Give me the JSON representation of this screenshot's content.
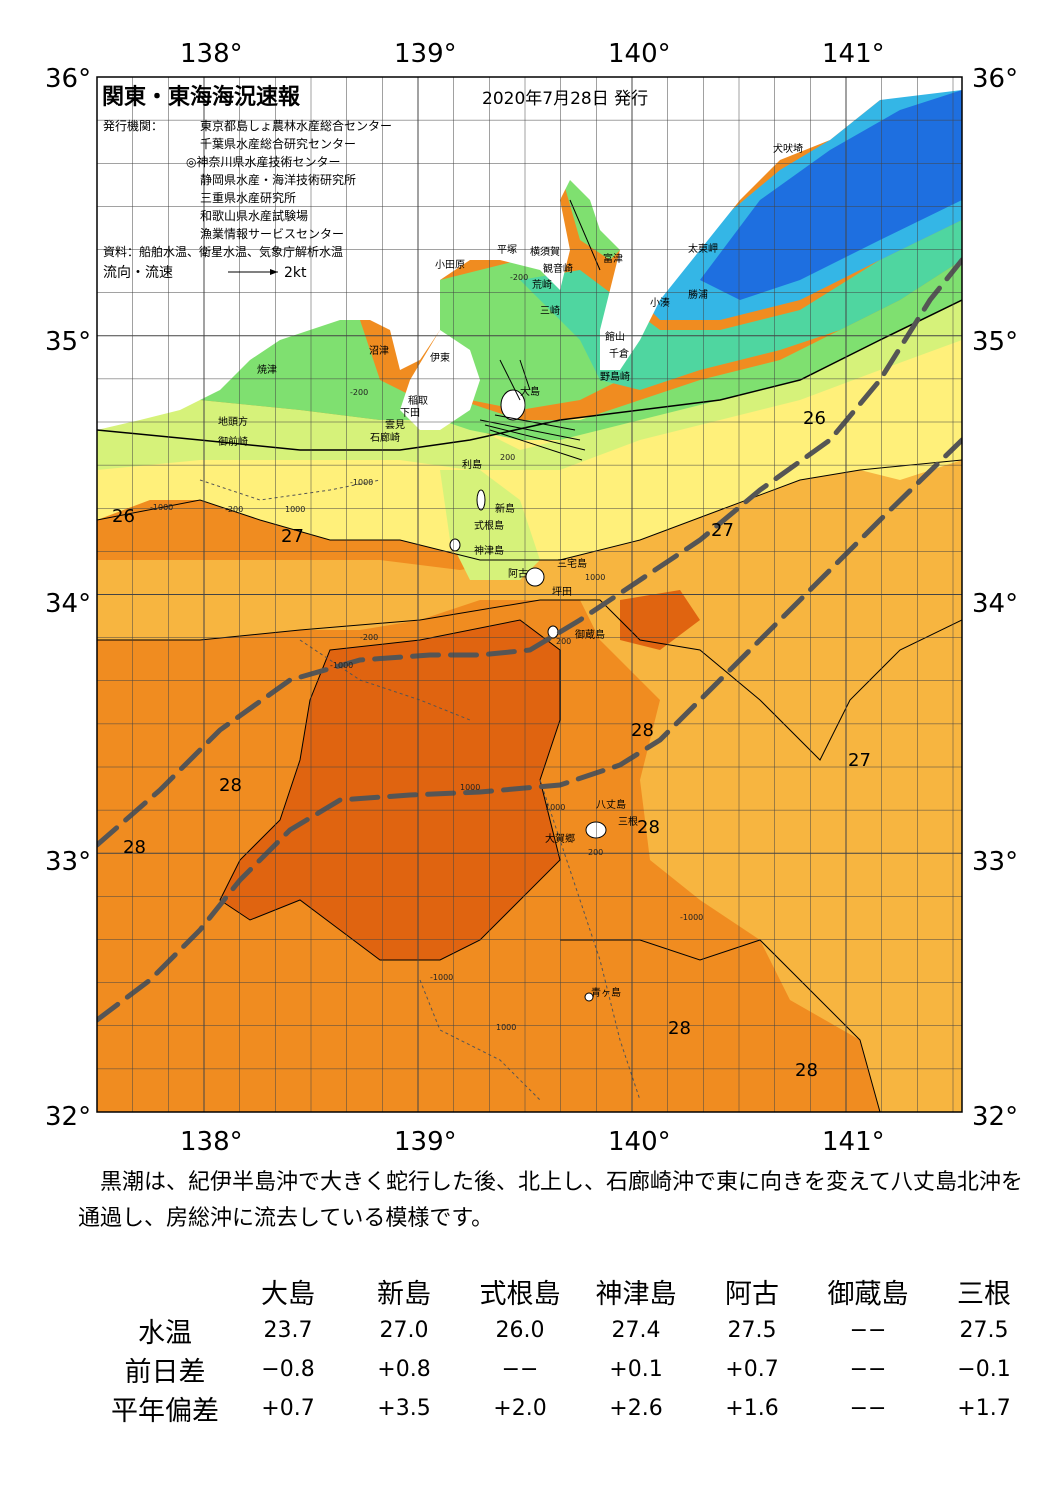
{
  "map": {
    "title": "関東・東海海況速報",
    "date": "2020年7月28日 発行",
    "issuer_label": "発行機関：",
    "issuers": [
      "東京都島しょ農林水産総合センター",
      "千葉県水産総合研究センター",
      "◎神奈川県水産技術センター",
      "静岡県水産・海洋技術研究所",
      "三重県水産研究所",
      "和歌山県水産試験場",
      "漁業情報サービスセンター"
    ],
    "source": "資料：船舶水温、衛星水温、気象庁解析水温",
    "flow_label": "流向・流速",
    "flow_scale": "2kt",
    "lon_labels": [
      "138°",
      "139°",
      "140°",
      "141°"
    ],
    "lat_labels": [
      "36°",
      "35°",
      "34°",
      "33°",
      "32°"
    ],
    "colors": {
      "land": "#ffffff",
      "kuroshio_path": "#555555",
      "sst_19": "#1e6fe0",
      "sst_22": "#34b6e6",
      "sst_23": "#4fd6a0",
      "sst_24": "#7fe070",
      "sst_25": "#d6f27a",
      "sst_26": "#fff07a",
      "sst_27": "#f7b540",
      "sst_28": "#f08c20",
      "sst_29": "#e06410"
    },
    "places": [
      {
        "name": "犬吠埼"
      },
      {
        "name": "太東岬"
      },
      {
        "name": "勝浦"
      },
      {
        "name": "小湊"
      },
      {
        "name": "館山"
      },
      {
        "name": "千倉"
      },
      {
        "name": "野島崎"
      },
      {
        "name": "富津"
      },
      {
        "name": "横須賀"
      },
      {
        "name": "観音崎"
      },
      {
        "name": "平塚"
      },
      {
        "name": "荒崎"
      },
      {
        "name": "三崎"
      },
      {
        "name": "小田原"
      },
      {
        "name": "沼津"
      },
      {
        "name": "伊東"
      },
      {
        "name": "焼津"
      },
      {
        "name": "稲取"
      },
      {
        "name": "下田"
      },
      {
        "name": "雲見"
      },
      {
        "name": "石廊崎"
      },
      {
        "name": "地頭方"
      },
      {
        "name": "御前崎"
      },
      {
        "name": "大島"
      },
      {
        "name": "利島"
      },
      {
        "name": "新島"
      },
      {
        "name": "式根島"
      },
      {
        "name": "神津島"
      },
      {
        "name": "三宅島"
      },
      {
        "name": "阿古"
      },
      {
        "name": "坪田"
      },
      {
        "name": "御蔵島"
      },
      {
        "name": "八丈島"
      },
      {
        "name": "三根"
      },
      {
        "name": "大賀郷"
      },
      {
        "name": "青ヶ島"
      }
    ],
    "isotherm_labels": [
      "26",
      "26",
      "27",
      "27",
      "27",
      "28",
      "28",
      "28",
      "28",
      "28",
      "28"
    ],
    "depth_labels": [
      "-200",
      "-1000",
      "-1000",
      "-200",
      "1000",
      "-200",
      "200",
      "1000",
      "-1000",
      "1000",
      "1000",
      "200",
      "-1000",
      "1000",
      "-1000",
      "-200",
      "200"
    ]
  },
  "description": "黒潮は、紀伊半島沖で大きく蛇行した後、北上し、石廊崎沖で東に向きを変えて八丈島北沖を通過し、房総沖に流去している模様です。",
  "table": {
    "columns": [
      "大島",
      "新島",
      "式根島",
      "神津島",
      "阿古",
      "御蔵島",
      "三根"
    ],
    "rows": [
      {
        "label": "水温",
        "values": [
          "23.7",
          "27.0",
          "26.0",
          "27.4",
          "27.5",
          "−−",
          "27.5"
        ]
      },
      {
        "label": "前日差",
        "values": [
          "−0.8",
          "+0.8",
          "−−",
          "+0.1",
          "+0.7",
          "−−",
          "−0.1"
        ]
      },
      {
        "label": "平年偏差",
        "values": [
          "+0.7",
          "+3.5",
          "+2.0",
          "+2.6",
          "+1.6",
          "−−",
          "+1.7"
        ]
      }
    ]
  }
}
